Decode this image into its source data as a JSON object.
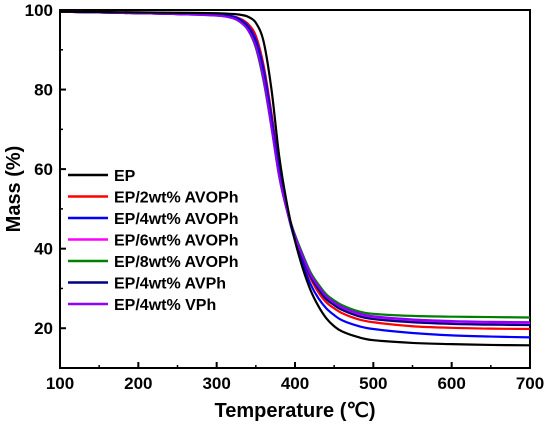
{
  "chart_data": {
    "type": "line",
    "xlabel": "Temperature (℃)",
    "ylabel": "Mass (%)",
    "xlim": [
      100,
      700
    ],
    "ylim": [
      10,
      100
    ],
    "xticks": [
      100,
      200,
      300,
      400,
      500,
      600,
      700
    ],
    "yticks": [
      20,
      40,
      60,
      80,
      100
    ],
    "grid": false,
    "legend_position": "left",
    "x": [
      100,
      150,
      200,
      250,
      300,
      320,
      330,
      340,
      350,
      360,
      370,
      380,
      390,
      400,
      410,
      420,
      430,
      440,
      450,
      460,
      480,
      500,
      550,
      600,
      650,
      700
    ],
    "series": [
      {
        "name": "EP",
        "color": "#000000",
        "values": [
          99.6,
          99.5,
          99.4,
          99.3,
          99.2,
          99.0,
          98.8,
          98.3,
          96.8,
          92.0,
          80.0,
          63.0,
          51.0,
          42.0,
          35.0,
          29.5,
          25.5,
          22.5,
          20.5,
          19.2,
          17.8,
          17.0,
          16.3,
          16.0,
          15.8,
          15.7
        ]
      },
      {
        "name": "EP/2wt% AVOPh",
        "color": "#ff0000",
        "values": [
          99.6,
          99.4,
          99.2,
          99.0,
          98.8,
          98.4,
          97.8,
          96.5,
          93.5,
          86.0,
          74.0,
          60.0,
          50.0,
          43.0,
          37.0,
          32.5,
          29.0,
          26.5,
          25.0,
          23.8,
          22.3,
          21.5,
          20.5,
          20.1,
          19.9,
          19.8
        ]
      },
      {
        "name": "EP/4wt% AVOPh",
        "color": "#0000ff",
        "values": [
          99.6,
          99.4,
          99.2,
          99.0,
          98.8,
          98.4,
          97.6,
          96.0,
          92.5,
          85.0,
          73.0,
          59.5,
          49.5,
          42.0,
          36.0,
          31.0,
          27.5,
          25.0,
          23.3,
          22.0,
          20.6,
          19.8,
          18.8,
          18.2,
          17.9,
          17.7
        ]
      },
      {
        "name": "EP/6wt% AVOPh",
        "color": "#ff00ff",
        "values": [
          99.6,
          99.4,
          99.2,
          99.0,
          98.7,
          98.2,
          97.3,
          95.5,
          91.5,
          83.5,
          71.5,
          58.5,
          49.5,
          43.0,
          37.5,
          33.0,
          30.0,
          27.5,
          26.0,
          24.8,
          23.3,
          22.5,
          21.7,
          21.3,
          21.1,
          21.0
        ]
      },
      {
        "name": "EP/8wt% AVOPh",
        "color": "#008000",
        "values": [
          99.6,
          99.4,
          99.2,
          99.0,
          98.6,
          98.0,
          97.0,
          95.0,
          90.5,
          82.0,
          70.5,
          58.0,
          49.5,
          43.5,
          38.5,
          34.0,
          31.0,
          28.5,
          27.0,
          25.8,
          24.3,
          23.6,
          23.1,
          22.9,
          22.8,
          22.7
        ]
      },
      {
        "name": "EP/4wt% AVPh",
        "color": "#000080",
        "values": [
          99.6,
          99.4,
          99.2,
          99.0,
          98.7,
          98.2,
          97.4,
          95.5,
          91.5,
          83.5,
          71.5,
          58.5,
          49.5,
          43.0,
          37.5,
          33.0,
          29.8,
          27.3,
          25.8,
          24.6,
          23.1,
          22.3,
          21.5,
          21.1,
          20.9,
          20.8
        ]
      },
      {
        "name": "EP/4wt% VPh",
        "color": "#8b00ff",
        "values": [
          99.6,
          99.4,
          99.2,
          99.0,
          98.6,
          98.0,
          97.0,
          95.0,
          90.8,
          82.5,
          70.5,
          58.0,
          49.5,
          43.2,
          38.0,
          33.5,
          30.5,
          28.0,
          26.5,
          25.3,
          23.8,
          23.0,
          22.2,
          21.8,
          21.6,
          21.5
        ]
      }
    ]
  }
}
